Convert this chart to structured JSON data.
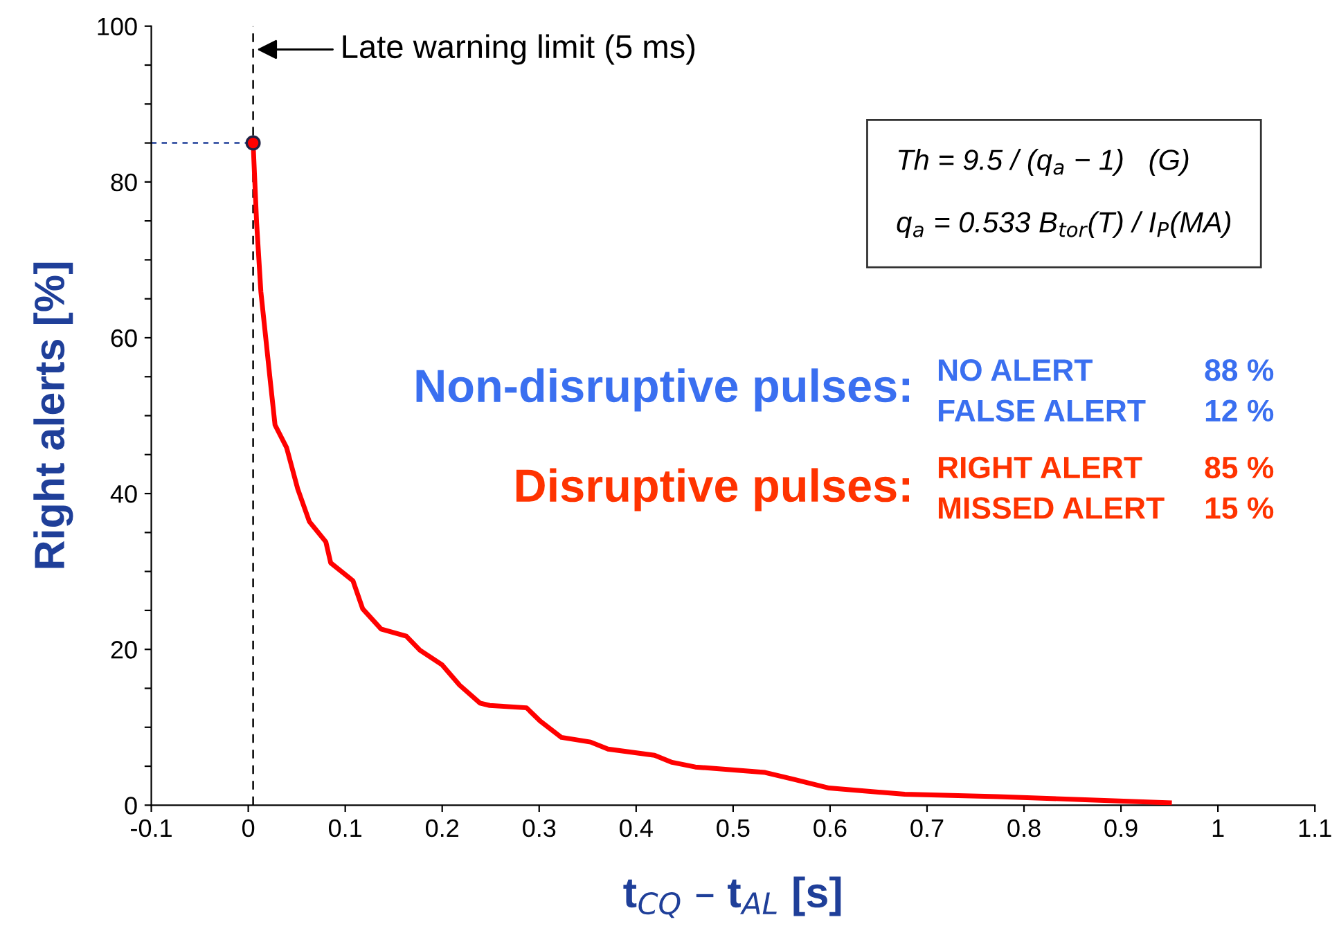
{
  "chart_data": {
    "type": "line",
    "xlabel": "t$_{CQ}$ – t$_{AL}$ [s]",
    "ylabel": "Right alerts [%]",
    "xlim": [
      -0.1,
      1.1
    ],
    "ylim": [
      0,
      100
    ],
    "xticks": [
      {
        "value": -0.1,
        "label": "-0.1"
      },
      0,
      0.1,
      0.2,
      0.3,
      0.4,
      0.5,
      0.6,
      0.7,
      0.8,
      0.9,
      1,
      1.1
    ],
    "yticks": [
      0,
      {
        "value": 5,
        "label": null
      },
      {
        "value": 10,
        "label": null
      },
      {
        "value": 15,
        "label": null
      },
      20,
      {
        "value": 25,
        "label": null
      },
      {
        "value": 30,
        "label": null
      },
      {
        "value": 35,
        "label": null
      },
      40,
      {
        "value": 45,
        "label": null
      },
      {
        "value": 50,
        "label": null
      },
      {
        "value": 55,
        "label": null
      },
      60,
      {
        "value": 65,
        "label": null
      },
      {
        "value": 70,
        "label": null
      },
      {
        "value": 75,
        "label": null
      },
      80,
      {
        "value": 85,
        "label": null
      },
      {
        "value": 90,
        "label": null
      },
      {
        "value": 95,
        "label": null
      },
      100
    ],
    "grid": false,
    "legend": false,
    "series": [
      {
        "color": "#ff0000",
        "marker": "none",
        "x": [
          0.005,
          0.0086,
          0.013,
          0.018,
          0.023,
          0.0276,
          0.0395,
          0.051,
          0.063,
          0.08,
          0.085,
          0.108,
          0.118,
          0.137,
          0.163,
          0.177,
          0.2,
          0.218,
          0.239,
          0.249,
          0.287,
          0.301,
          0.323,
          0.353,
          0.371,
          0.419,
          0.437,
          0.461,
          0.533,
          0.563,
          0.599,
          0.677,
          0.773,
          0.863,
          0.95
        ],
        "values": [
          85,
          74.8,
          65.9,
          60,
          54.1,
          48.8,
          45.9,
          40.6,
          36.4,
          33.8,
          31.1,
          28.8,
          25.2,
          22.6,
          21.7,
          19.9,
          18,
          15.4,
          13.1,
          12.8,
          12.5,
          10.8,
          8.7,
          8.1,
          7.2,
          6.4,
          5.5,
          4.9,
          4.2,
          3.3,
          2.2,
          1.4,
          1.1,
          0.7,
          0.3
        ]
      },
      {
        "type": "scatter",
        "color": "#ff0000",
        "marker": "circle",
        "x": [
          0.005
        ],
        "values": [
          85
        ]
      }
    ],
    "ref_lines": [
      {
        "axis": "x",
        "value": 0.005,
        "label": "Late warning limit (5 ms)",
        "color": "#000000",
        "line_style": "dashed"
      },
      {
        "axis": "y",
        "value": 85,
        "color": "#1f3f99",
        "line_style": "dotted"
      }
    ],
    "annotations": [
      "Th = 9.5 / (q$_{a}$ − 1)   (G)\n\nq$_{a}$ = 0.533 B$_{tor}$(T) / I$_{P}$(MA)",
      "Non-disruptive pulses:",
      "NO ALERT",
      "88 %",
      "FALSE ALERT",
      "12 %",
      "Disruptive pulses:",
      "RIGHT ALERT",
      "85 %",
      "MISSED ALERT",
      "15 %"
    ]
  }
}
